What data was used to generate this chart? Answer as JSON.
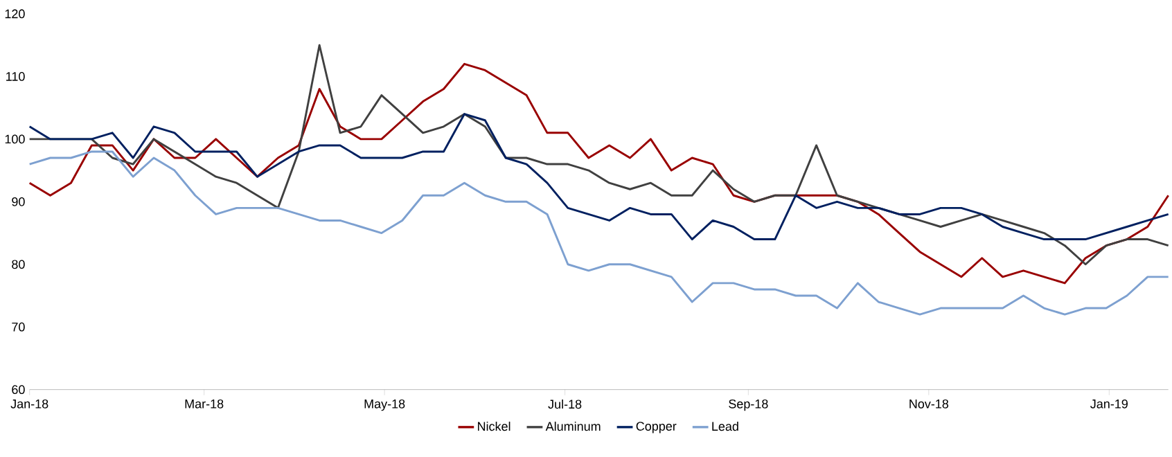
{
  "chart_data": {
    "type": "line",
    "x": [
      "2018-01-01",
      "2018-01-08",
      "2018-01-15",
      "2018-01-22",
      "2018-01-29",
      "2018-02-05",
      "2018-02-12",
      "2018-02-19",
      "2018-02-26",
      "2018-03-05",
      "2018-03-12",
      "2018-03-19",
      "2018-03-26",
      "2018-04-02",
      "2018-04-09",
      "2018-04-16",
      "2018-04-23",
      "2018-04-30",
      "2018-05-07",
      "2018-05-14",
      "2018-05-21",
      "2018-05-28",
      "2018-06-04",
      "2018-06-11",
      "2018-06-18",
      "2018-06-25",
      "2018-07-02",
      "2018-07-09",
      "2018-07-16",
      "2018-07-23",
      "2018-07-30",
      "2018-08-06",
      "2018-08-13",
      "2018-08-20",
      "2018-08-27",
      "2018-09-03",
      "2018-09-10",
      "2018-09-17",
      "2018-09-24",
      "2018-10-01",
      "2018-10-08",
      "2018-10-15",
      "2018-10-22",
      "2018-10-29",
      "2018-11-05",
      "2018-11-12",
      "2018-11-19",
      "2018-11-26",
      "2018-12-03",
      "2018-12-10",
      "2018-12-17",
      "2018-12-24",
      "2018-12-31",
      "2019-01-07",
      "2019-01-14",
      "2019-01-21"
    ],
    "series": [
      {
        "name": "Nickel",
        "color": "#990000",
        "values": [
          93,
          91,
          93,
          99,
          99,
          95,
          100,
          97,
          97,
          100,
          97,
          94,
          97,
          99,
          108,
          102,
          100,
          100,
          103,
          106,
          108,
          112,
          111,
          109,
          107,
          101,
          101,
          97,
          99,
          97,
          100,
          95,
          97,
          96,
          91,
          90,
          91,
          91,
          91,
          91,
          90,
          88,
          85,
          82,
          80,
          78,
          81,
          78,
          79,
          78,
          77,
          81,
          83,
          84,
          86,
          91
        ]
      },
      {
        "name": "Aluminum",
        "color": "#404040",
        "values": [
          100,
          100,
          100,
          100,
          97,
          96,
          100,
          98,
          96,
          94,
          93,
          91,
          89,
          98,
          115,
          101,
          102,
          107,
          104,
          101,
          102,
          104,
          102,
          97,
          97,
          96,
          96,
          95,
          93,
          92,
          93,
          91,
          91,
          95,
          92,
          90,
          91,
          91,
          99,
          91,
          90,
          89,
          88,
          87,
          86,
          87,
          88,
          87,
          86,
          85,
          83,
          80,
          83,
          84,
          84,
          83
        ]
      },
      {
        "name": "Copper",
        "color": "#002060",
        "values": [
          102,
          100,
          100,
          100,
          101,
          97,
          102,
          101,
          98,
          98,
          98,
          94,
          96,
          98,
          99,
          99,
          97,
          97,
          97,
          98,
          98,
          104,
          103,
          97,
          96,
          93,
          89,
          88,
          87,
          89,
          88,
          88,
          84,
          87,
          86,
          84,
          84,
          91,
          89,
          90,
          89,
          89,
          88,
          88,
          89,
          89,
          88,
          86,
          85,
          84,
          84,
          84,
          85,
          86,
          87,
          88
        ]
      },
      {
        "name": "Lead",
        "color": "#7da0d0",
        "values": [
          96,
          97,
          97,
          98,
          98,
          94,
          97,
          95,
          91,
          88,
          89,
          89,
          89,
          88,
          87,
          87,
          86,
          85,
          87,
          91,
          91,
          93,
          91,
          90,
          90,
          88,
          80,
          79,
          80,
          80,
          79,
          78,
          74,
          77,
          77,
          76,
          76,
          75,
          75,
          73,
          77,
          74,
          73,
          72,
          73,
          73,
          73,
          73,
          75,
          73,
          72,
          73,
          73,
          75,
          78,
          78
        ]
      }
    ],
    "xlim": [
      "2018-01-01",
      "2019-01-21"
    ],
    "xticks": [
      {
        "value": "2018-01-01",
        "label": "Jan-18"
      },
      {
        "value": "2018-03-01",
        "label": "Mar-18"
      },
      {
        "value": "2018-05-01",
        "label": "May-18"
      },
      {
        "value": "2018-07-01",
        "label": "Jul-18"
      },
      {
        "value": "2018-09-01",
        "label": "Sep-18"
      },
      {
        "value": "2018-11-01",
        "label": "Nov-18"
      },
      {
        "value": "2019-01-01",
        "label": "Jan-19"
      }
    ],
    "ylim": [
      60,
      120
    ],
    "yticks": [
      60,
      70,
      80,
      90,
      100,
      110,
      120
    ],
    "legend": "bottom",
    "marker": "none",
    "line_style": "solid"
  }
}
